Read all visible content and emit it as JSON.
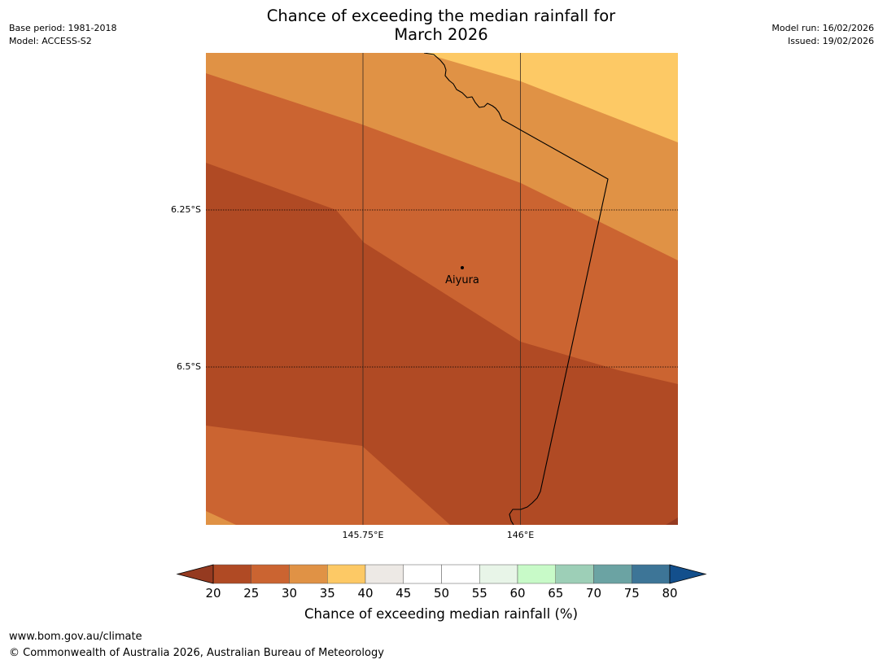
{
  "header": {
    "title_line1": "Chance of exceeding the median rainfall for",
    "title_line2": "March 2026",
    "base_period": "Base period: 1981-2018",
    "model": "Model: ACCESS-S2",
    "model_run": "Model run: 16/02/2026",
    "issued": "Issued: 19/02/2026"
  },
  "map": {
    "lat_labels": [
      "6.25°S",
      "6.5°S"
    ],
    "lon_labels": [
      "145.75°E",
      "146°E"
    ],
    "place": {
      "name": "Aiyura"
    }
  },
  "colorbar": {
    "ticks": [
      "20",
      "25",
      "30",
      "35",
      "40",
      "45",
      "50",
      "55",
      "60",
      "65",
      "70",
      "75",
      "80"
    ],
    "colors": [
      "#b04a24",
      "#cb6431",
      "#e09245",
      "#fdc965",
      "#ede9e5",
      "#ffffff",
      "#ffffff",
      "#e8f5e8",
      "#c8fac8",
      "#9dcfb7",
      "#6ba3a3",
      "#3d7597"
    ],
    "under_color": "#953a20",
    "over_color": "#134f8c",
    "label": "Chance of exceeding median rainfall (%)"
  },
  "footer": {
    "url": "www.bom.gov.au/climate",
    "copyright": "© Commonwealth of Australia 2026, Australian Bureau of Meteorology"
  }
}
